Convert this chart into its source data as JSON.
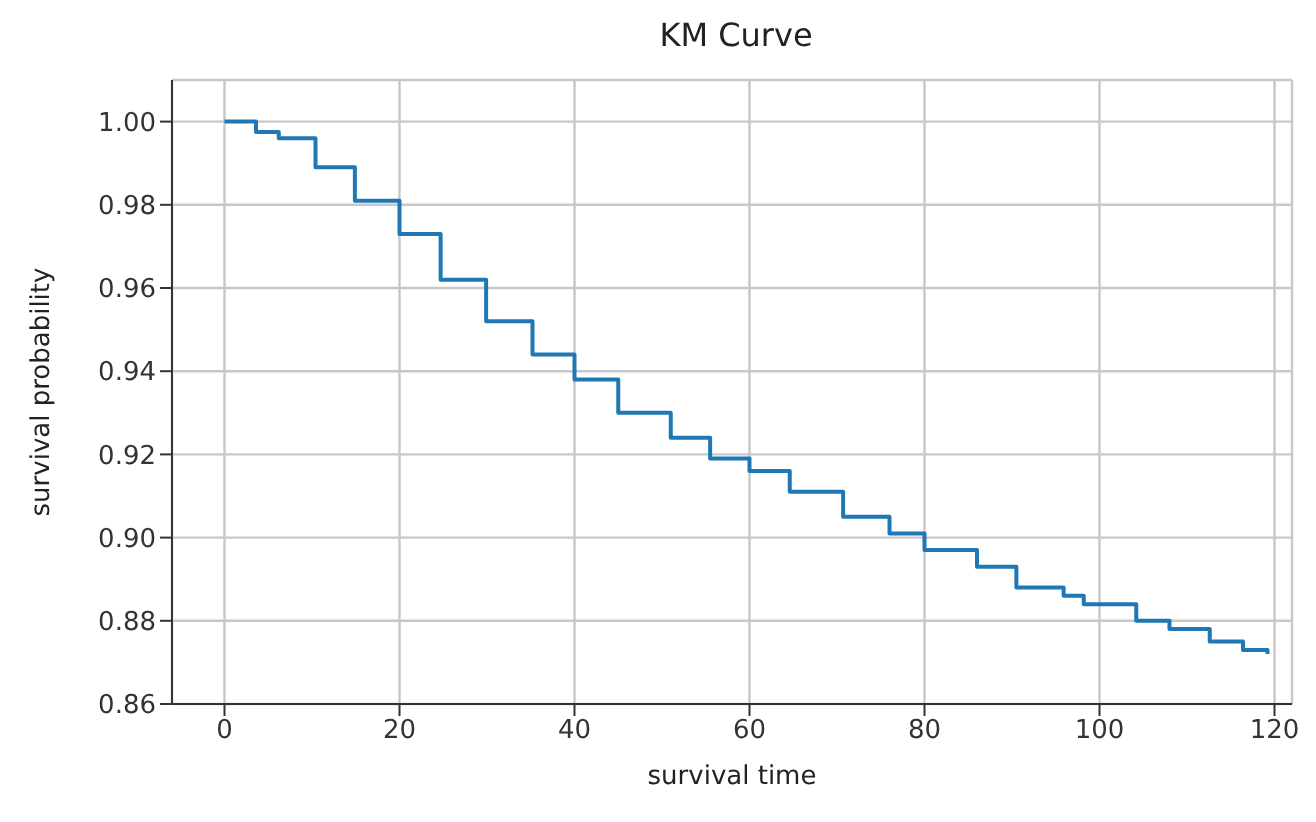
{
  "chart_data": {
    "type": "step",
    "title": "KM Curve",
    "xlabel": "survival time",
    "ylabel": "survival probability",
    "x": [
      0,
      3.6,
      6.2,
      10.4,
      14.9,
      20,
      24.7,
      29.9,
      35.2,
      40,
      45,
      51,
      55.5,
      60,
      64.6,
      70.7,
      76,
      80,
      86,
      90.5,
      95.9,
      98.2,
      100.8,
      104.2,
      108,
      112.6,
      116.4,
      119.2
    ],
    "series": [
      {
        "color": "#1f77b4",
        "values": [
          1.0,
          0.9975,
          0.996,
          0.989,
          0.981,
          0.973,
          0.962,
          0.952,
          0.944,
          0.938,
          0.93,
          0.924,
          0.919,
          0.916,
          0.911,
          0.905,
          0.901,
          0.897,
          0.893,
          0.888,
          0.886,
          0.884,
          0.884,
          0.88,
          0.878,
          0.875,
          0.873,
          0.872
        ]
      }
    ],
    "xlim": [
      -6,
      122
    ],
    "xticks": [
      0,
      20,
      40,
      60,
      80,
      100,
      120
    ],
    "ylim": [
      0.86,
      1.01
    ],
    "yticks": [
      {
        "value": 0.86,
        "label": "0.86"
      },
      {
        "value": 0.88,
        "label": "0.88"
      },
      {
        "value": 0.9,
        "label": "0.90"
      },
      {
        "value": 0.92,
        "label": "0.92"
      },
      {
        "value": 0.94,
        "label": "0.94"
      },
      {
        "value": 0.96,
        "label": "0.96"
      },
      {
        "value": 0.98,
        "label": "0.98"
      },
      {
        "value": 1.0,
        "label": "1.00"
      }
    ],
    "grid": true,
    "marker": "none",
    "line_style": "solid"
  }
}
